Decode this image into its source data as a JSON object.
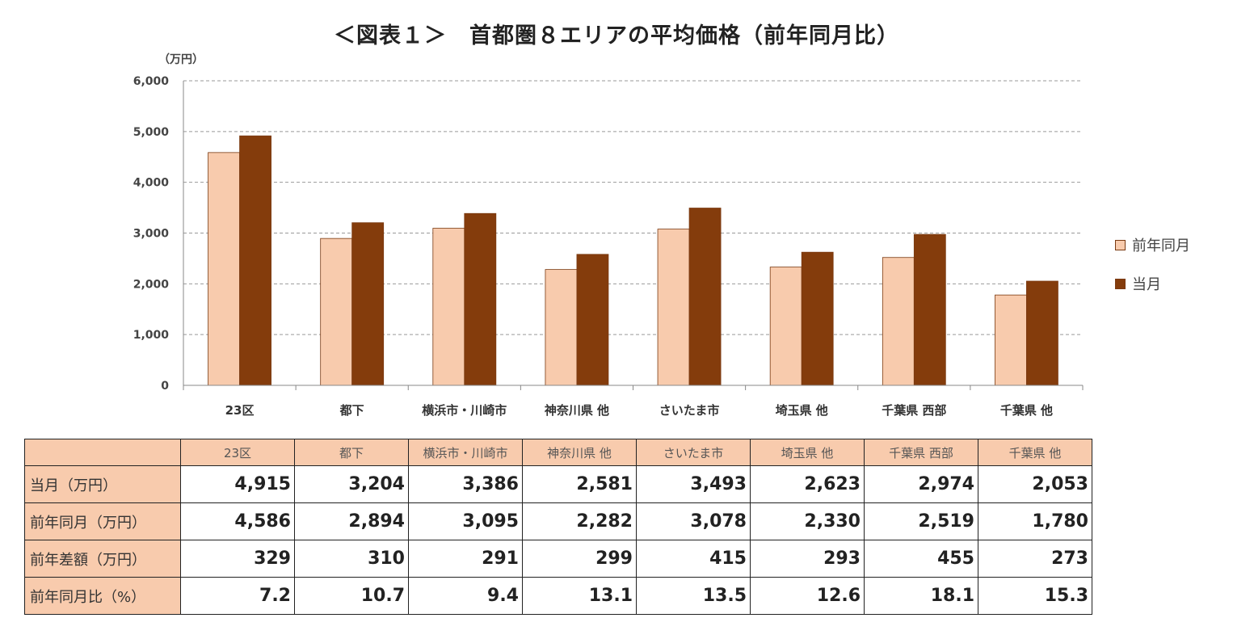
{
  "title": "＜図表１＞　首都圏８エリアの平均価格（前年同月比）",
  "chart_data": {
    "type": "bar",
    "y_unit_label": "（万円）",
    "categories": [
      "23区",
      "都下",
      "横浜市・川崎市",
      "神奈川県 他",
      "さいたま市",
      "埼玉県 他",
      "千葉県 西部",
      "千葉県 他"
    ],
    "series": [
      {
        "name": "前年同月",
        "color": "#f8cbad",
        "values": [
          4586,
          2894,
          3095,
          2282,
          3078,
          2330,
          2519,
          1780
        ]
      },
      {
        "name": "当月",
        "color": "#843c0c",
        "values": [
          4915,
          3204,
          3386,
          2581,
          3493,
          2623,
          2974,
          2053
        ]
      }
    ],
    "ylim": [
      0,
      6000
    ],
    "yticks": [
      0,
      1000,
      2000,
      3000,
      4000,
      5000,
      6000
    ],
    "ytick_labels": [
      "0",
      "1,000",
      "2,000",
      "3,000",
      "4,000",
      "5,000",
      "6,000"
    ],
    "grid": true,
    "legend_position": "right"
  },
  "table": {
    "header": [
      "23区",
      "都下",
      "横浜市・川崎市",
      "神奈川県 他",
      "さいたま市",
      "埼玉県 他",
      "千葉県 西部",
      "千葉県 他"
    ],
    "rows": [
      {
        "label": "当月（万円）",
        "values": [
          "4,915",
          "3,204",
          "3,386",
          "2,581",
          "3,493",
          "2,623",
          "2,974",
          "2,053"
        ]
      },
      {
        "label": "前年同月（万円）",
        "values": [
          "4,586",
          "2,894",
          "3,095",
          "2,282",
          "3,078",
          "2,330",
          "2,519",
          "1,780"
        ]
      },
      {
        "label": "前年差額（万円）",
        "values": [
          "329",
          "310",
          "291",
          "299",
          "415",
          "293",
          "455",
          "273"
        ]
      },
      {
        "label": "前年同月比（%）",
        "values": [
          "7.2",
          "10.7",
          "9.4",
          "13.1",
          "13.5",
          "12.6",
          "18.1",
          "15.3"
        ]
      }
    ]
  }
}
